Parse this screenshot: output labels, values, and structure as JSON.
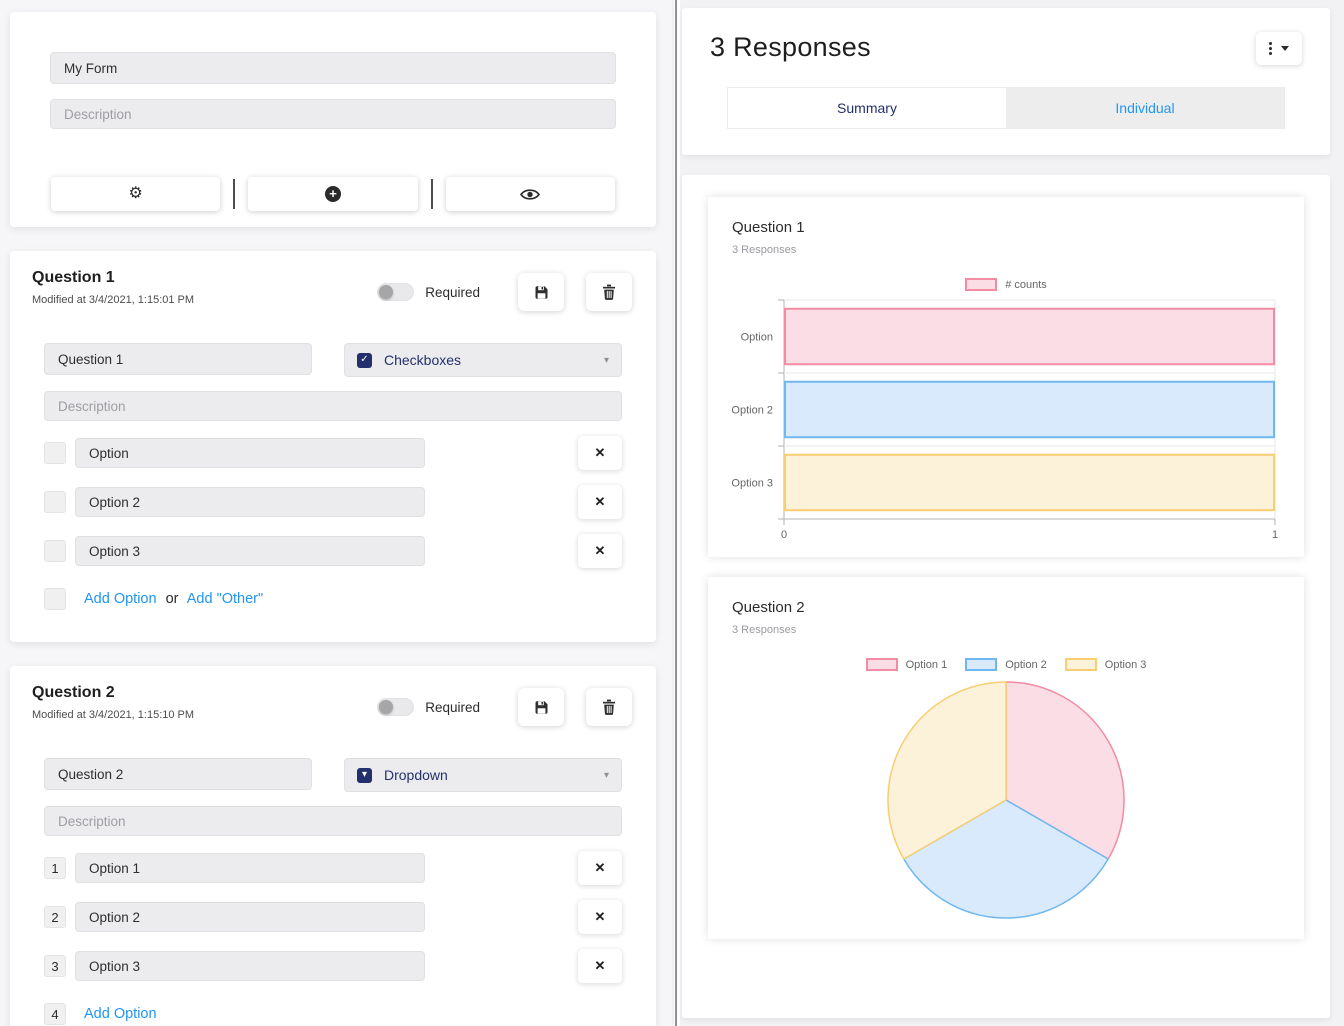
{
  "icons": {
    "glyphs": {
      "gear": "⚙",
      "plus": "+",
      "check": "✓",
      "caret_down": "▾",
      "close": "✕"
    },
    "names": {
      "form_toolbar": [
        "gear",
        "plus-circle",
        "eye"
      ],
      "question_actions": [
        "floppy-save",
        "trash"
      ],
      "responses_menu": "kebab-vertical-with-caret"
    }
  },
  "left_panel": {
    "form_card": {
      "title_value": "My Form",
      "description_placeholder": "Description"
    },
    "questions": [
      {
        "heading": "Question 1",
        "modified": "Modified at 3/4/2021, 1:15:01 PM",
        "required_label": "Required",
        "name_value": "Question 1",
        "type": "Checkboxes",
        "description_placeholder": "Description",
        "options": [
          "Option",
          "Option 2",
          "Option 3"
        ],
        "add_option_label": "Add Option",
        "or_label": "or",
        "add_other_label": "Add \"Other\""
      },
      {
        "heading": "Question 2",
        "modified": "Modified at 3/4/2021, 1:15:10 PM",
        "required_label": "Required",
        "name_value": "Question 2",
        "type": "Dropdown",
        "description_placeholder": "Description",
        "option_numbers": [
          "1",
          "2",
          "3"
        ],
        "options": [
          "Option 1",
          "Option 2",
          "Option 3"
        ],
        "add_number": "4",
        "add_option_label": "Add Option"
      }
    ]
  },
  "right_panel": {
    "title": "3 Responses",
    "tabs": [
      {
        "label": "Summary",
        "active": true
      },
      {
        "label": "Individual",
        "active": false
      }
    ]
  },
  "chart_data": [
    {
      "type": "bar",
      "orientation": "horizontal",
      "title": "Question 1",
      "subtitle": "3 Responses",
      "legend": [
        "# counts"
      ],
      "legend_position": "top",
      "categories": [
        "Option",
        "Option 2",
        "Option 3"
      ],
      "values": [
        1,
        1,
        1
      ],
      "xlim": [
        0,
        1
      ],
      "x_tick_labels": [
        "0",
        "1"
      ],
      "grid": true,
      "colors": [
        {
          "fill": "#FBDDE5",
          "border": "#F28BA3"
        },
        {
          "fill": "#D8EAFB",
          "border": "#6FB7F0"
        },
        {
          "fill": "#FCF2D9",
          "border": "#F8CE70"
        }
      ]
    },
    {
      "type": "pie",
      "title": "Question 2",
      "subtitle": "3 Responses",
      "legend": [
        "Option 1",
        "Option 2",
        "Option 3"
      ],
      "legend_position": "top",
      "labels": [
        "Option 1",
        "Option 2",
        "Option 3"
      ],
      "values": [
        1,
        1,
        1
      ],
      "start_angle_deg": -90,
      "colors": [
        {
          "fill": "#FBDDE5",
          "border": "#F28BA3"
        },
        {
          "fill": "#D8EAFB",
          "border": "#6FB7F0"
        },
        {
          "fill": "#FCF2D9",
          "border": "#F8CE70"
        }
      ]
    }
  ]
}
